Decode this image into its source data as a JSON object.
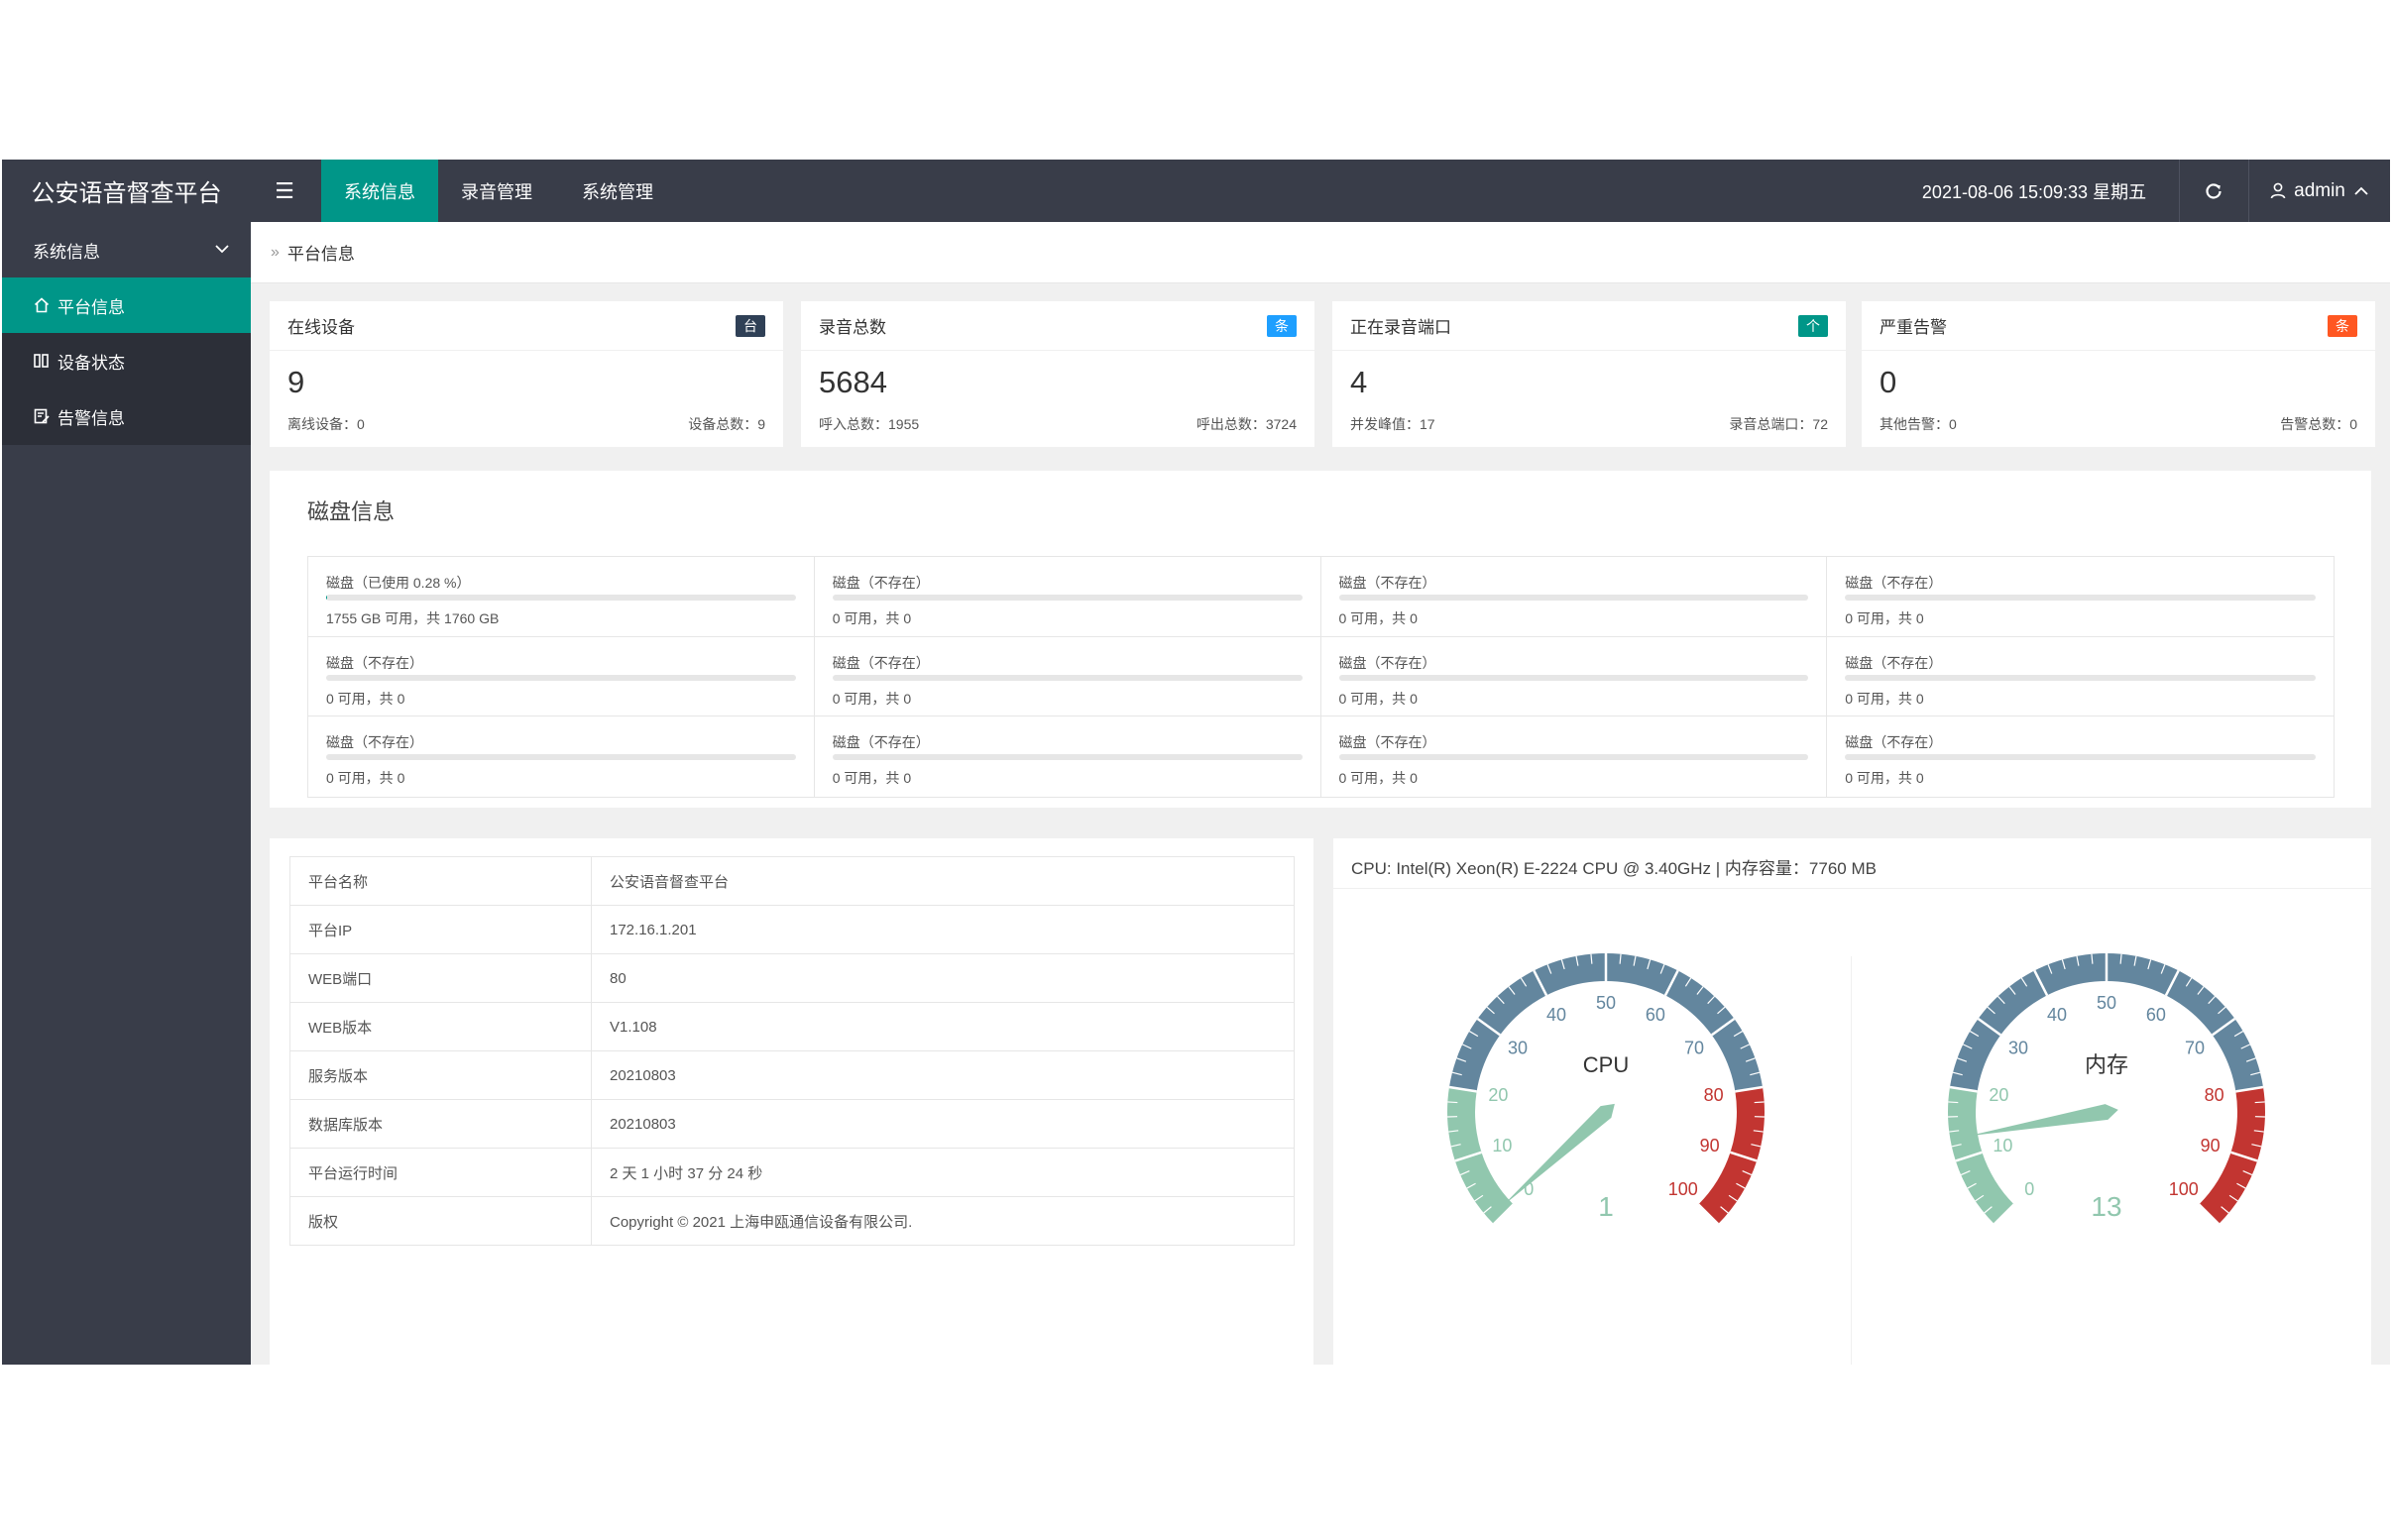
{
  "header": {
    "title": "公安语音督查平台",
    "menu_icon": "☰",
    "tabs": [
      {
        "label": "系统信息",
        "active": true
      },
      {
        "label": "录音管理",
        "active": false
      },
      {
        "label": "系统管理",
        "active": false
      }
    ],
    "datetime": "2021-08-06 15:09:33 星期五",
    "user": "admin"
  },
  "sidebar": {
    "group": "系统信息",
    "items": [
      {
        "label": "平台信息",
        "icon": "home-icon",
        "active": true
      },
      {
        "label": "设备状态",
        "icon": "device-icon",
        "active": false
      },
      {
        "label": "告警信息",
        "icon": "alarm-icon",
        "active": false
      }
    ]
  },
  "breadcrumb": {
    "separator": "»",
    "current": "平台信息"
  },
  "colors": {
    "accent": "#009688",
    "header": "#393d49",
    "badge_dark": "#2f4056",
    "badge_blue": "#1e9fff",
    "badge_green": "#009688",
    "badge_orange": "#ff5722"
  },
  "stats": [
    {
      "title": "在线设备",
      "badge": "台",
      "value": "9",
      "left": "离线设备：0",
      "right": "设备总数：9"
    },
    {
      "title": "录音总数",
      "badge": "条",
      "value": "5684",
      "left": "呼入总数：1955",
      "right": "呼出总数：3724"
    },
    {
      "title": "正在录音端口",
      "badge": "个",
      "value": "4",
      "left": "并发峰值：17",
      "right": "录音总端口：72"
    },
    {
      "title": "严重告警",
      "badge": "条",
      "value": "0",
      "left": "其他告警：0",
      "right": "告警总数：0"
    }
  ],
  "disk": {
    "title": "磁盘信息",
    "cells": [
      {
        "label": "磁盘（已使用 0.28 %）",
        "info": "1755 GB 可用，共 1760 GB",
        "used_pct": 0.28
      },
      {
        "label": "磁盘（不存在）",
        "info": "0 可用，共 0",
        "used_pct": 0
      },
      {
        "label": "磁盘（不存在）",
        "info": "0 可用，共 0",
        "used_pct": 0
      },
      {
        "label": "磁盘（不存在）",
        "info": "0 可用，共 0",
        "used_pct": 0
      },
      {
        "label": "磁盘（不存在）",
        "info": "0 可用，共 0",
        "used_pct": 0
      },
      {
        "label": "磁盘（不存在）",
        "info": "0 可用，共 0",
        "used_pct": 0
      },
      {
        "label": "磁盘（不存在）",
        "info": "0 可用，共 0",
        "used_pct": 0
      },
      {
        "label": "磁盘（不存在）",
        "info": "0 可用，共 0",
        "used_pct": 0
      },
      {
        "label": "磁盘（不存在）",
        "info": "0 可用，共 0",
        "used_pct": 0
      },
      {
        "label": "磁盘（不存在）",
        "info": "0 可用，共 0",
        "used_pct": 0
      },
      {
        "label": "磁盘（不存在）",
        "info": "0 可用，共 0",
        "used_pct": 0
      },
      {
        "label": "磁盘（不存在）",
        "info": "0 可用，共 0",
        "used_pct": 0
      }
    ]
  },
  "platform_info": [
    {
      "key": "平台名称",
      "value": "公安语音督查平台"
    },
    {
      "key": "平台IP",
      "value": "172.16.1.201"
    },
    {
      "key": "WEB端口",
      "value": "80"
    },
    {
      "key": "WEB版本",
      "value": "V1.108"
    },
    {
      "key": "服务版本",
      "value": "20210803"
    },
    {
      "key": "数据库版本",
      "value": "20210803"
    },
    {
      "key": "平台运行时间",
      "value": "2 天 1 小时 37 分 24 秒"
    },
    {
      "key": "版权",
      "value": "Copyright © 2021 上海申瓯通信设备有限公司."
    }
  ],
  "gauges": {
    "title": "CPU: Intel(R) Xeon(R) E-2224 CPU @ 3.40GHz | 内存容量：7760 MB",
    "ticks": [
      "0",
      "10",
      "20",
      "30",
      "40",
      "50",
      "60",
      "70",
      "80",
      "90",
      "100"
    ],
    "items": [
      {
        "name": "CPU",
        "value": 1
      },
      {
        "name": "内存",
        "value": 13
      }
    ],
    "colors": {
      "low": "#91c7ae",
      "mid": "#63869e",
      "high": "#c23531"
    }
  }
}
